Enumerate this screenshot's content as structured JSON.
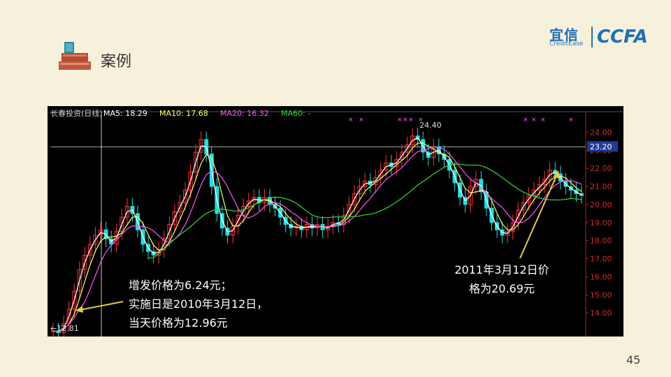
{
  "header": {
    "title": "案例",
    "icon": "stacked-books-icon"
  },
  "logo": {
    "main": "宜信",
    "sub": "CreditEase",
    "right": "CCFA"
  },
  "page_number": "45",
  "chart_data": {
    "type": "candlestick-line",
    "legend_title": "长春投资(日线)",
    "indicators": [
      {
        "label": "MA5: 18.29",
        "color": "#ffffff"
      },
      {
        "label": "MA10: 17.68",
        "color": "#ffff66"
      },
      {
        "label": "MA20: 16.32",
        "color": "#ff55ff"
      },
      {
        "label": "MA60: -",
        "color": "#33dd33"
      }
    ],
    "ylim": [
      13.0,
      24.6
    ],
    "y_ticks": [
      "24.00",
      "23.00",
      "22.00",
      "21.00",
      "20.00",
      "19.00",
      "18.00",
      "17.00",
      "16.00",
      "15.00",
      "14.00"
    ],
    "tick_values": [
      24,
      23,
      22,
      21,
      20,
      19,
      18,
      17,
      16,
      15,
      14
    ],
    "current_price_label": "23.20",
    "current_price": 23.2,
    "high_label": "24.40",
    "high": 24.4,
    "low_label": "←12.81",
    "low": 12.81,
    "price_path": [
      13.0,
      12.9,
      13.4,
      14.2,
      15.2,
      16.4,
      17.2,
      17.8,
      18.3,
      18.6,
      18.1,
      17.8,
      18.5,
      19.3,
      19.9,
      19.5,
      18.6,
      17.8,
      17.4,
      17.2,
      17.5,
      18.1,
      18.9,
      19.6,
      20.1,
      20.8,
      21.8,
      22.9,
      23.6,
      22.8,
      21.0,
      19.5,
      18.7,
      18.3,
      18.8,
      19.4,
      19.9,
      20.2,
      20.4,
      20.1,
      20.4,
      20.0,
      19.8,
      19.3,
      18.9,
      18.7,
      18.8,
      18.6,
      18.9,
      18.7,
      18.9,
      18.6,
      18.8,
      19.0,
      18.9,
      19.4,
      20.0,
      20.6,
      21.0,
      21.3,
      21.1,
      21.5,
      21.9,
      22.3,
      22.1,
      22.5,
      22.9,
      23.3,
      23.8,
      23.6,
      22.9,
      22.6,
      23.2,
      22.8,
      22.5,
      21.9,
      21.2,
      20.4,
      20.0,
      21.0,
      21.4,
      20.7,
      19.8,
      19.0,
      18.6,
      18.3,
      18.5,
      19.0,
      19.7,
      20.1,
      20.5,
      20.8,
      21.1,
      21.4,
      21.9,
      21.7,
      21.3,
      21.0,
      20.8,
      20.6,
      20.5
    ],
    "annotations": [
      {
        "lines": [
          "增发价格为6.24元；",
          "实施日是2010年3月12日，",
          "当天价格为12.96元"
        ]
      },
      {
        "lines": [
          "2011年3月12日价",
          "格为20.69元"
        ]
      }
    ]
  }
}
